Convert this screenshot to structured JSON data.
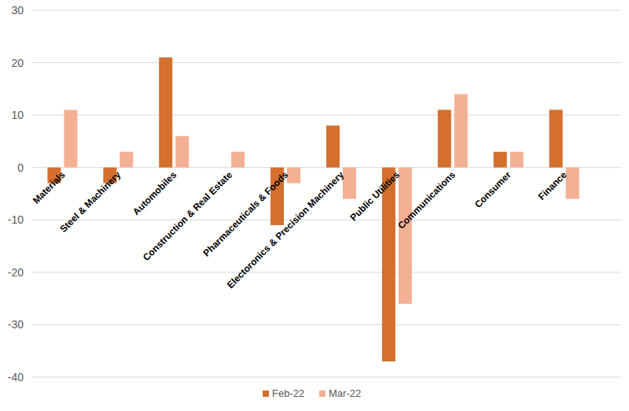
{
  "chart_data": {
    "type": "bar",
    "categories": [
      "Materials",
      "Steel & Machinery",
      "Automobiles",
      "Construction & Real Estate",
      "Pharmaceuticals & Foods",
      "Electoronics & Precision Machinery",
      "Public Utilities",
      "Communications",
      "Consumer",
      "Finance"
    ],
    "series": [
      {
        "name": "Feb-22",
        "color": "#d46f2e",
        "values": [
          -3,
          -3,
          21,
          0,
          -11,
          8,
          -37,
          11,
          3,
          11
        ]
      },
      {
        "name": "Mar-22",
        "color": "#f4b094",
        "values": [
          11,
          3,
          6,
          3,
          -3,
          -6,
          -26,
          14,
          3,
          -6
        ]
      }
    ],
    "ylim": [
      -40,
      30
    ],
    "yticks": [
      -40,
      -30,
      -20,
      -10,
      0,
      10,
      20,
      30
    ],
    "grid": true,
    "legend": "bottom"
  }
}
